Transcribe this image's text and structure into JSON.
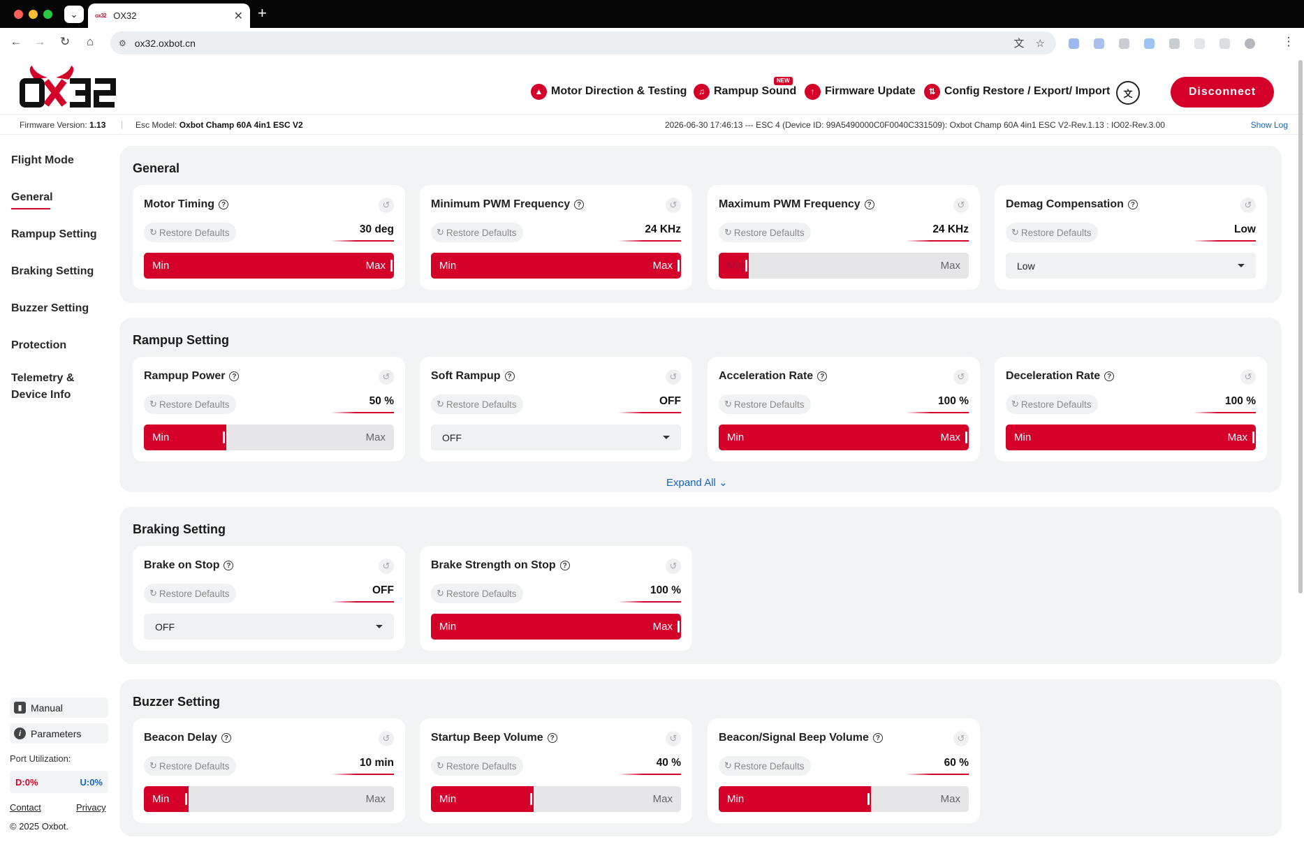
{
  "browser": {
    "tab_title": "OX32",
    "tab_favicon": "ox32",
    "url": "ox32.oxbot.cn",
    "colors": {
      "tabbar": "#050505",
      "close": "#ff5f57",
      "minimize": "#febc2e",
      "maximize": "#28c840"
    }
  },
  "header": {
    "logo_text": "OX32",
    "nav": [
      {
        "label": "Motor Direction & Testing",
        "icon": "motor-icon"
      },
      {
        "label": "Rampup Sound",
        "icon": "music-icon",
        "badge": "NEW"
      },
      {
        "label": "Firmware Update",
        "icon": "upload-icon"
      },
      {
        "label": "Config Restore / Export/ Import",
        "icon": "sync-icon"
      }
    ],
    "disconnect_label": "Disconnect",
    "accent_color": "#d4002a"
  },
  "infobar": {
    "firmware_label": "Firmware Version:",
    "firmware_value": "1.13",
    "esc_label": "Esc Model:",
    "esc_value": "Oxbot Champ 60A 4in1 ESC V2",
    "log_text": "2026-06-30 17:46:13 --- ESC 4 (Device ID: 99A5490000C0F0040C331509): Oxbot Champ 60A 4in1 ESC V2-Rev.1.13 : IO02-Rev.3.00",
    "show_log_label": "Show Log"
  },
  "sidebar": {
    "items": [
      {
        "label": "Flight Mode"
      },
      {
        "label": "General",
        "active": true
      },
      {
        "label": "Rampup Setting"
      },
      {
        "label": "Braking Setting"
      },
      {
        "label": "Buzzer Setting"
      },
      {
        "label": "Protection"
      },
      {
        "label": "Telemetry &"
      },
      {
        "label": "Device Info"
      }
    ],
    "manual_label": "Manual",
    "parameters_label": "Parameters",
    "port_label": "Port Utilization:",
    "port_d": "D:0%",
    "port_u": "U:0%",
    "contact_label": "Contact",
    "privacy_label": "Privacy",
    "copyright": "© 2025 Oxbot."
  },
  "restore_label": "Restore Defaults",
  "slider_min_label": "Min",
  "slider_max_label": "Max",
  "sections": {
    "general": {
      "title": "General",
      "cards": [
        {
          "title": "Motor Timing",
          "value": "30 deg",
          "level": 1.0
        },
        {
          "title": "Minimum PWM Frequency",
          "value": "24 KHz",
          "level": 1.0
        },
        {
          "title": "Maximum PWM Frequency",
          "value": "24 KHz",
          "level": 0.12
        },
        {
          "title": "Demag Compensation",
          "value": "Low",
          "select": "Low"
        }
      ]
    },
    "rampup": {
      "title": "Rampup Setting",
      "expand_label": "Expand All",
      "cards": [
        {
          "title": "Rampup Power",
          "value": "50 %",
          "level": 0.33
        },
        {
          "title": "Soft Rampup",
          "value": "OFF",
          "select": "OFF"
        },
        {
          "title": "Acceleration Rate",
          "value": "100 %",
          "level": 1.0
        },
        {
          "title": "Deceleration Rate",
          "value": "100 %",
          "level": 1.0
        }
      ]
    },
    "braking": {
      "title": "Braking Setting",
      "cards": [
        {
          "title": "Brake on Stop",
          "value": "OFF",
          "select": "OFF"
        },
        {
          "title": "Brake Strength on Stop",
          "value": "100 %",
          "level": 1.0
        }
      ]
    },
    "buzzer": {
      "title": "Buzzer Setting",
      "cards": [
        {
          "title": "Beacon Delay",
          "value": "10 min",
          "level": 0.18
        },
        {
          "title": "Startup Beep Volume",
          "value": "40 %",
          "level": 0.41
        },
        {
          "title": "Beacon/Signal Beep Volume",
          "value": "60 %",
          "level": 0.61
        }
      ]
    }
  }
}
